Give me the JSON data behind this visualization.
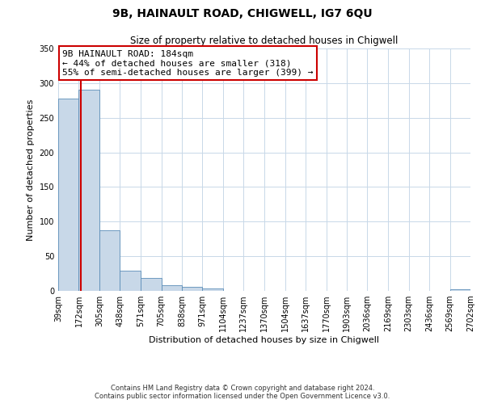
{
  "title": "9B, HAINAULT ROAD, CHIGWELL, IG7 6QU",
  "subtitle": "Size of property relative to detached houses in Chigwell",
  "xlabel": "Distribution of detached houses by size in Chigwell",
  "ylabel": "Number of detached properties",
  "bar_edges": [
    39,
    172,
    305,
    438,
    571,
    705,
    838,
    971,
    1104,
    1237,
    1370,
    1504,
    1637,
    1770,
    1903,
    2036,
    2169,
    2303,
    2436,
    2569,
    2702
  ],
  "bar_heights": [
    278,
    290,
    88,
    29,
    19,
    8,
    6,
    3,
    0,
    0,
    0,
    0,
    0,
    0,
    0,
    0,
    0,
    0,
    0,
    2
  ],
  "bar_color": "#c8d8e8",
  "bar_edge_color": "#5b8db8",
  "vline_x": 184,
  "vline_color": "#cc0000",
  "ylim": [
    0,
    350
  ],
  "yticks": [
    0,
    50,
    100,
    150,
    200,
    250,
    300,
    350
  ],
  "xtick_labels": [
    "39sqm",
    "172sqm",
    "305sqm",
    "438sqm",
    "571sqm",
    "705sqm",
    "838sqm",
    "971sqm",
    "1104sqm",
    "1237sqm",
    "1370sqm",
    "1504sqm",
    "1637sqm",
    "1770sqm",
    "1903sqm",
    "2036sqm",
    "2169sqm",
    "2303sqm",
    "2436sqm",
    "2569sqm",
    "2702sqm"
  ],
  "annotation_title": "9B HAINAULT ROAD: 184sqm",
  "annotation_line1": "← 44% of detached houses are smaller (318)",
  "annotation_line2": "55% of semi-detached houses are larger (399) →",
  "annotation_box_color": "#ffffff",
  "annotation_box_edge": "#cc0000",
  "footer_line1": "Contains HM Land Registry data © Crown copyright and database right 2024.",
  "footer_line2": "Contains public sector information licensed under the Open Government Licence v3.0.",
  "background_color": "#ffffff",
  "grid_color": "#c8d8e8",
  "title_fontsize": 10,
  "subtitle_fontsize": 8.5,
  "axis_label_fontsize": 8,
  "tick_fontsize": 7,
  "annotation_fontsize": 8,
  "footer_fontsize": 6
}
